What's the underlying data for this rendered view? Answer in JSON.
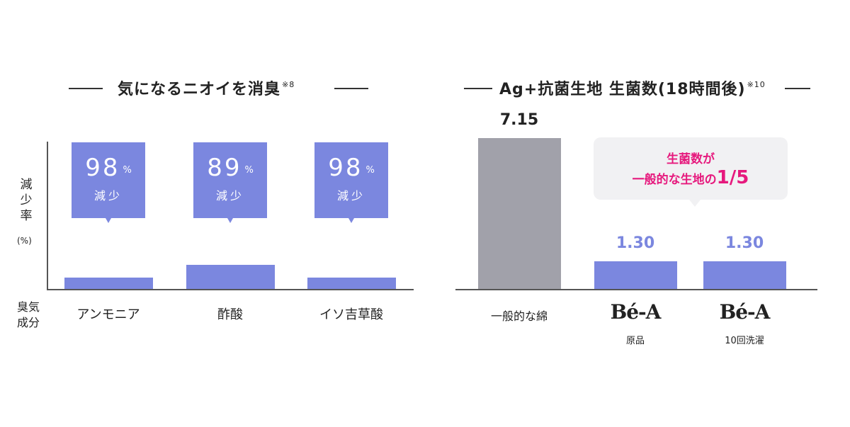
{
  "left": {
    "title": "気になるニオイを消臭",
    "title_note": "※8",
    "y_label_lines": [
      "減",
      "少",
      "率"
    ],
    "y_unit": "(%)",
    "x_label_lines": [
      "臭気",
      "成分"
    ],
    "pct_symbol": "%",
    "callout_label": "減少"
  },
  "right": {
    "title": "Ag+抗菌生地 生菌数(18時間後)",
    "title_note": "※10",
    "callout_line1": "生菌数が",
    "callout_line2_prefix": "一般的な生地の",
    "callout_line2_emph": "1/5",
    "brand_logo": "Bé-A"
  },
  "colors": {
    "bar_accent": "#7b87df",
    "bar_gray": "#a1a1aa",
    "highlight_pink": "#e6197d",
    "callout_bg": "#f1f1f3"
  },
  "chart_data": [
    {
      "type": "bar",
      "title": "気になるニオイを消臭",
      "categories": [
        "アンモニア",
        "酢酸",
        "イソ吉草酸"
      ],
      "values": [
        98,
        89,
        98
      ],
      "value_unit": "%",
      "ylabel": "減少率(%)",
      "xlabel": "臭気成分"
    },
    {
      "type": "bar",
      "title": "Ag+抗菌生地 生菌数(18時間後)",
      "categories": [
        "一般的な綿",
        "Bé-A 原品",
        "Bé-A 10回洗濯"
      ],
      "category_sublabels": [
        "",
        "原品",
        "10回洗濯"
      ],
      "values": [
        7.15,
        1.3,
        1.3
      ],
      "value_labels": [
        "7.15",
        "1.30",
        "1.30"
      ],
      "ylim": [
        0,
        7.15
      ]
    }
  ]
}
